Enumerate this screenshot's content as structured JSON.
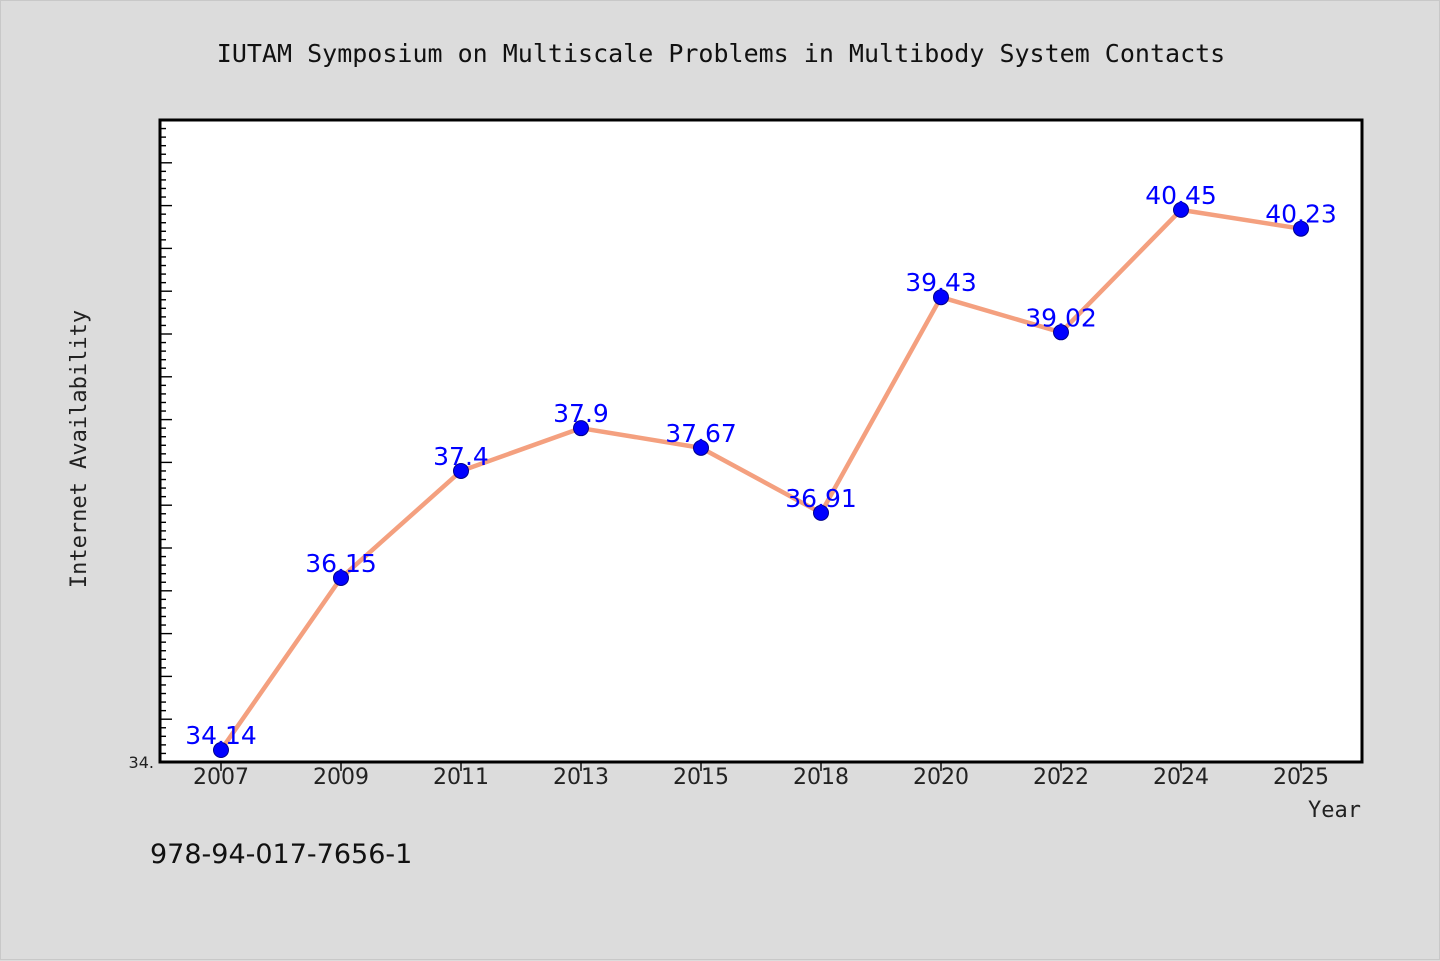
{
  "caption": "978-94-017-7656-1",
  "chart_data": {
    "type": "line",
    "title": "IUTAM Symposium on Multiscale Problems in Multibody System Contacts",
    "xlabel": "Year",
    "ylabel": "Internet Availability",
    "categories": [
      "2007",
      "2009",
      "2011",
      "2013",
      "2015",
      "2018",
      "2020",
      "2022",
      "2024",
      "2025"
    ],
    "values": [
      34.14,
      36.15,
      37.4,
      37.9,
      37.67,
      36.91,
      39.43,
      39.02,
      40.45,
      40.23
    ],
    "data_labels": [
      "34.14",
      "36.15",
      "37.4",
      "37.9",
      "37.67",
      "36.91",
      "39.43",
      "39.02",
      "40.45",
      "40.23"
    ],
    "y_tick_label": "34.",
    "ylim": [
      34.0,
      41.5
    ],
    "grid": false,
    "legend": "none",
    "colors": {
      "line": "#f4a07f",
      "marker": "#0000ff",
      "label": "#0000ff",
      "background": "#dcdcdc",
      "plot_background": "#ffffff"
    }
  }
}
